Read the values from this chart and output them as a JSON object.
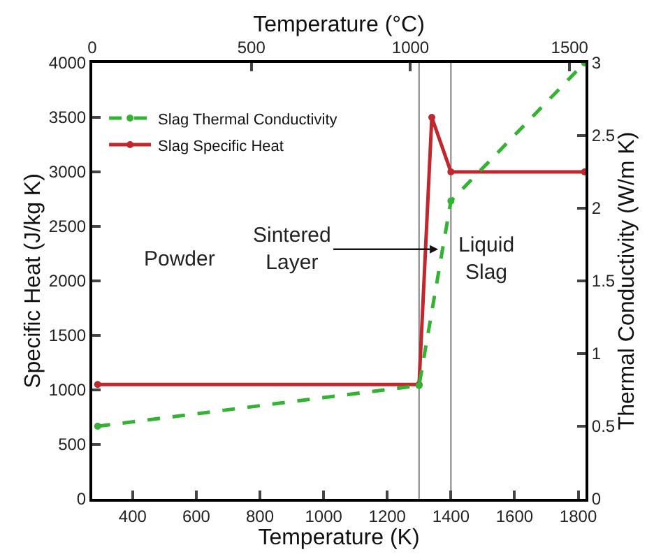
{
  "chart_data": {
    "type": "line",
    "xlabel": "Temperature (K)",
    "ylabel": "Specific Heat (J/kg K)",
    "y2label": "Thermal Conductivity (W/m K)",
    "x2label": "Temperature (°C)",
    "xlim": [
      273,
      1823
    ],
    "xticks": [
      400,
      600,
      800,
      1000,
      1200,
      1400,
      1600,
      1800
    ],
    "x2lim": [
      0,
      1550
    ],
    "x2ticks": [
      0,
      500,
      1000,
      1500
    ],
    "ylim": [
      0,
      4000
    ],
    "yticks": [
      0,
      500,
      1000,
      1500,
      2000,
      2500,
      3000,
      3500,
      4000
    ],
    "y2lim": [
      0,
      3
    ],
    "y2ticks": [
      0,
      0.5,
      1,
      1.5,
      2,
      2.5,
      3
    ],
    "series": [
      {
        "name": "Slag Thermal Conductivity",
        "color": "#33b233",
        "axis": "y2",
        "line_style": "dashed",
        "x": [
          290,
          1300,
          1400,
          1820
        ],
        "values": [
          0.5,
          0.78,
          2.05,
          3.0
        ]
      },
      {
        "name": "Slag Specific Heat",
        "color": "#c0282d",
        "line_style": "solid",
        "x": [
          290,
          1300,
          1340,
          1400,
          1820
        ],
        "values": [
          1050,
          1050,
          3500,
          3000,
          3000
        ]
      }
    ],
    "ref_lines": [
      {
        "axis": "x",
        "value": 1300,
        "color": "#808080"
      },
      {
        "axis": "x",
        "value": 1400,
        "color": "#808080"
      }
    ],
    "annotations": [
      "Powder",
      {
        "text": "Sintered\nLayer",
        "x": 1360,
        "y": 2290
      },
      "Liquid\nSlag"
    ],
    "marker": "circle",
    "legend": "top left"
  }
}
